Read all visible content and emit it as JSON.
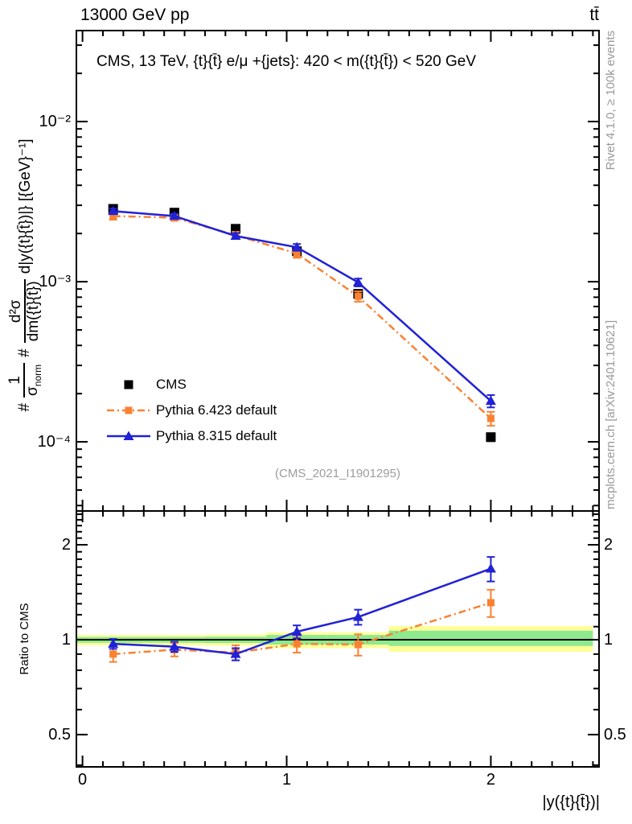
{
  "header": {
    "left": "13000 GeV pp",
    "right": "tt̄"
  },
  "right_margin": {
    "top": "Rivet 4.1.0, ≥ 100k events",
    "bottom": "mcplots.cern.ch [arXiv:2401.10621]"
  },
  "main_panel": {
    "annotation": "CMS, 13 TeV, {t}{t̄} e/μ +{jets}: 420 < m({t}{t̄}) < 520 GeV",
    "watermark": "(CMS_2021_I1901295)",
    "ylabel_parts": {
      "hash1": "#",
      "frac1_num": "1",
      "frac1_den": "σ",
      "frac1_densub": "norm",
      "hash2": "#",
      "frac2_num": "d²σ",
      "frac2_den": "dm({t}{t̄})",
      "suffix": "d|y({t}{t̄})|} [{GeV}⁻¹]"
    }
  },
  "axes": {
    "x": {
      "title": "|y({t}{t̄})|",
      "tick_labels": [
        "0",
        "1",
        "2"
      ],
      "tick_values": [
        0,
        1,
        2
      ],
      "minor_step": 0.1,
      "range": [
        0,
        2.5
      ]
    },
    "y_main": {
      "tick_labels": [
        "10⁻²",
        "10⁻³",
        "10⁻⁴"
      ],
      "tick_values": [
        0.01,
        0.001,
        0.0001
      ]
    },
    "y_ratio": {
      "title": "Ratio to CMS",
      "tick_labels": [
        "2",
        "1",
        "0.5"
      ],
      "tick_values": [
        2,
        1,
        0.5
      ]
    }
  },
  "colors": {
    "cms": "#000000",
    "pythia6": "#fa8132",
    "pythia8": "#2121d6",
    "band_yellow": "#ffff9a",
    "band_green": "#8fe98f",
    "gray_text": "#999999"
  },
  "chart_data": [
    {
      "type": "line",
      "panel": "main",
      "title": "CMS, 13 TeV, {t}{t̄} e/μ +{jets}: 420 < m({t}{t̄}) < 520 GeV",
      "xlabel": "|y({t}{t̄})|",
      "ylabel": "1/σ_norm d²σ/dm({t}{t̄}) d|y({t}{t̄})| [GeV⁻¹]",
      "xlim": [
        -0.03,
        2.53
      ],
      "ylim": [
        3.7e-05,
        0.037
      ],
      "yscale": "log",
      "grid": false,
      "x": [
        0.15,
        0.45,
        0.75,
        1.05,
        1.35,
        2.0
      ],
      "bin_edges": [
        0,
        0.3,
        0.6,
        0.9,
        1.2,
        1.5,
        2.5
      ],
      "series": [
        {
          "name": "cms",
          "label": "CMS",
          "color": "#000000",
          "marker": "square",
          "marker_size": 12,
          "line": "none",
          "y": [
            0.00285,
            0.0027,
            0.00214,
            0.00155,
            0.00084,
            0.000107
          ],
          "yerr": [
            9e-05,
            8e-05,
            7e-05,
            5e-05,
            3.5e-05,
            6e-06
          ]
        },
        {
          "name": "pythia6",
          "label": "Pythia 6.423 default",
          "color": "#fa8132",
          "marker": "square",
          "marker_size": 9,
          "line": "dashdot",
          "y": [
            0.00257,
            0.00251,
            0.00195,
            0.0015,
            0.00081,
            0.00014
          ],
          "yerr": [
            0.00013,
            0.00011,
            0.0001,
            9e-05,
            6e-05,
            1.4e-05
          ]
        },
        {
          "name": "pythia8",
          "label": "Pythia 8.315 default",
          "color": "#2121d6",
          "marker": "triangle",
          "marker_size": 13,
          "line": "solid",
          "y": [
            0.00276,
            0.00257,
            0.00193,
            0.00164,
            0.00099,
            0.00018
          ],
          "yerr": [
            0.0001,
            9e-05,
            8e-05,
            8e-05,
            5.5e-05,
            1.6e-05
          ]
        }
      ]
    },
    {
      "type": "line",
      "panel": "ratio",
      "ylabel": "Ratio to CMS",
      "xlim": [
        -0.03,
        2.53
      ],
      "ylim": [
        0.395,
        2.56
      ],
      "yscale": "log",
      "x": [
        0.15,
        0.45,
        0.75,
        1.05,
        1.35,
        2.0
      ],
      "reference_line": 1.0,
      "bands": {
        "edges": [
          0,
          0.3,
          0.6,
          0.9,
          1.2,
          1.5,
          2.5
        ],
        "yellow_lo": [
          0.96,
          0.96,
          0.957,
          0.94,
          0.94,
          0.915
        ],
        "yellow_hi": [
          1.035,
          1.035,
          1.038,
          1.055,
          1.055,
          1.105
        ],
        "green_lo": [
          0.978,
          0.978,
          0.976,
          0.965,
          0.965,
          0.955
        ],
        "green_hi": [
          1.02,
          1.02,
          1.022,
          1.035,
          1.035,
          1.068
        ]
      },
      "series": [
        {
          "name": "pythia6_ratio",
          "label": "Pythia 6.423 default",
          "color": "#fa8132",
          "marker": "square",
          "marker_size": 9,
          "line": "dashdot",
          "y": [
            0.9,
            0.93,
            0.91,
            0.97,
            0.965,
            1.31
          ],
          "yerr": [
            0.05,
            0.045,
            0.05,
            0.06,
            0.075,
            0.13
          ]
        },
        {
          "name": "pythia8_ratio",
          "label": "Pythia 8.315 default",
          "color": "#2121d6",
          "marker": "triangle",
          "marker_size": 13,
          "line": "solid",
          "y": [
            0.97,
            0.95,
            0.9,
            1.06,
            1.18,
            1.68
          ],
          "yerr": [
            0.035,
            0.035,
            0.04,
            0.05,
            0.065,
            0.15
          ]
        }
      ]
    }
  ]
}
